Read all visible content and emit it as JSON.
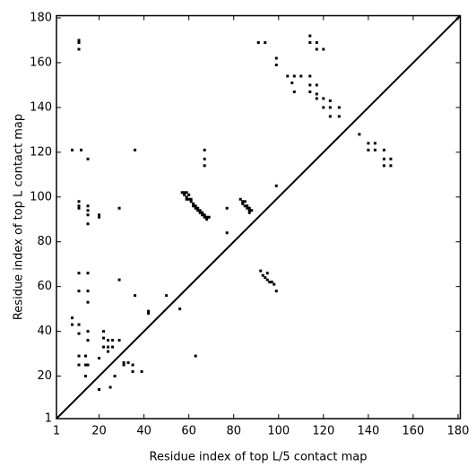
{
  "chart_data": {
    "type": "scatter",
    "xlabel": "Residue index of top L/5 contact map",
    "ylabel": "Residue index of top L contact map",
    "color": "#000000",
    "xlim": [
      1,
      181
    ],
    "ylim": [
      1,
      181
    ],
    "xticks": [
      1,
      20,
      40,
      60,
      80,
      100,
      120,
      140,
      160,
      180
    ],
    "yticks": [
      1,
      20,
      40,
      60,
      80,
      100,
      120,
      140,
      160,
      180
    ],
    "x": [
      11,
      11,
      11,
      91,
      94,
      99,
      99,
      104,
      107,
      110,
      114,
      114,
      114,
      117,
      117,
      120,
      106,
      114,
      117,
      107,
      114,
      117,
      117,
      120,
      120,
      123,
      123,
      123,
      127,
      127,
      136,
      140,
      140,
      143,
      143,
      147,
      147,
      147,
      150,
      150,
      8,
      12,
      15,
      36,
      67,
      67,
      67,
      77,
      77,
      99,
      11,
      11,
      11,
      15,
      15,
      15,
      15,
      20,
      20,
      29,
      11,
      11,
      15,
      15,
      15,
      8,
      8,
      11,
      11,
      15,
      15,
      11,
      11,
      14,
      14,
      14,
      15,
      20,
      20,
      22,
      22,
      22,
      24,
      24,
      24,
      25,
      26,
      26,
      27,
      29,
      29,
      31,
      31,
      33,
      35,
      35,
      36,
      39,
      42,
      42,
      50,
      56,
      63,
      92,
      93,
      94,
      95,
      95,
      96,
      97,
      98,
      99,
      57,
      58,
      59,
      58,
      59,
      60,
      60,
      59,
      61,
      61,
      62,
      62,
      63,
      63,
      64,
      64,
      65,
      65,
      66,
      66,
      67,
      67,
      68,
      69,
      68,
      83,
      84,
      84,
      85,
      85,
      86,
      86,
      87,
      87,
      87,
      88
    ],
    "values": [
      170,
      169,
      166,
      169,
      169,
      162,
      159,
      154,
      154,
      154,
      154,
      172,
      169,
      169,
      166,
      166,
      151,
      150,
      150,
      147,
      147,
      146,
      144,
      144,
      140,
      143,
      140,
      136,
      140,
      136,
      128,
      124,
      121,
      124,
      121,
      121,
      117,
      114,
      117,
      114,
      121,
      121,
      117,
      121,
      121,
      117,
      114,
      95,
      84,
      105,
      98,
      96,
      95,
      96,
      94,
      92,
      88,
      92,
      91,
      95,
      66,
      58,
      66,
      58,
      53,
      46,
      43,
      43,
      39,
      40,
      36,
      29,
      25,
      29,
      25,
      20,
      25,
      28,
      14,
      40,
      37,
      33,
      36,
      33,
      31,
      15,
      36,
      33,
      20,
      63,
      36,
      25,
      26,
      26,
      25,
      22,
      56,
      22,
      48,
      49,
      56,
      50,
      29,
      67,
      65,
      64,
      66,
      63,
      62,
      62,
      61,
      58,
      102,
      102,
      102,
      101,
      100,
      101,
      99,
      99,
      99,
      98,
      97,
      96,
      96,
      95,
      95,
      94,
      94,
      93,
      93,
      92,
      92,
      91,
      91,
      91,
      90,
      99,
      98,
      97,
      98,
      96,
      96,
      95,
      95,
      94,
      93,
      94
    ]
  }
}
